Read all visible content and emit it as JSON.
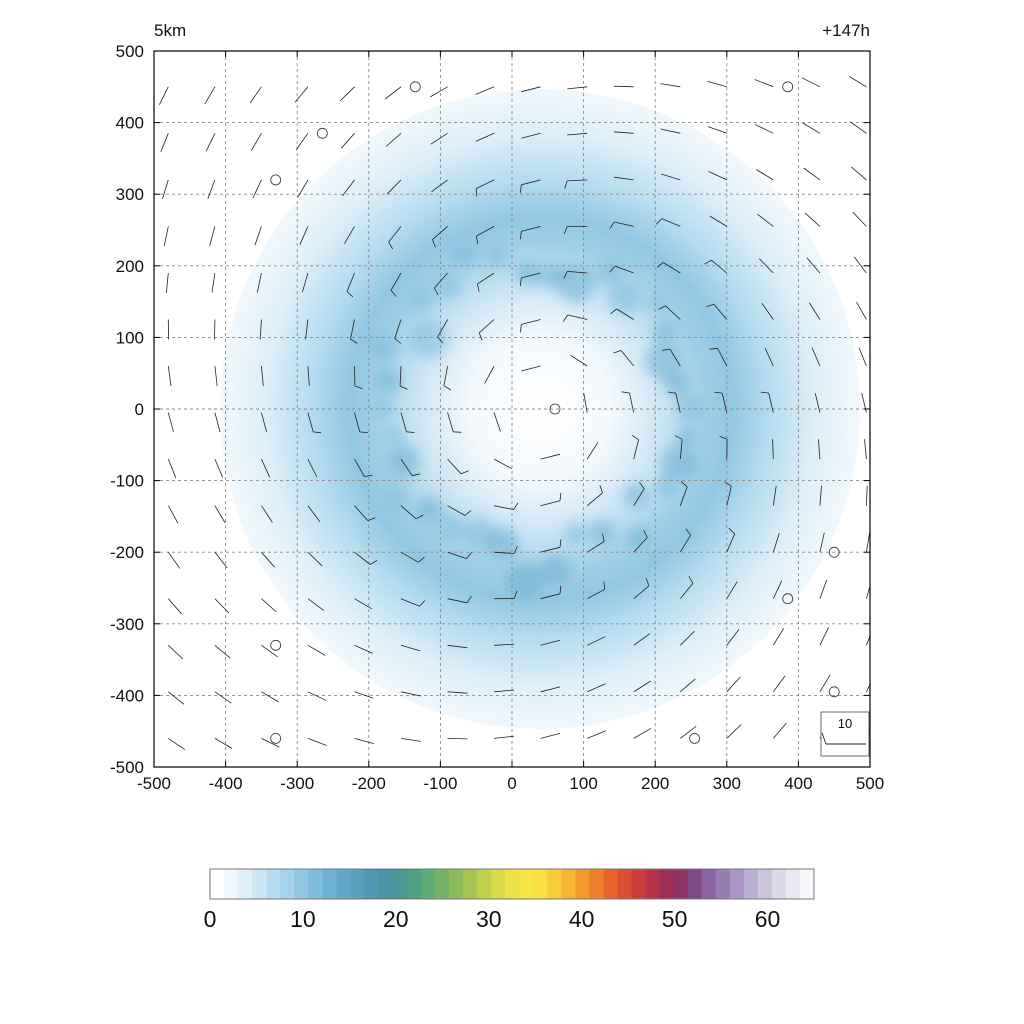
{
  "chart_data": {
    "type": "heatmap",
    "title_left": "5km",
    "title_right": "+147h",
    "xlabel": "",
    "ylabel": "",
    "xlim": [
      -500,
      500
    ],
    "ylim": [
      -500,
      500
    ],
    "xticks": [
      -500,
      -400,
      -300,
      -200,
      -100,
      0,
      100,
      200,
      300,
      400,
      500
    ],
    "yticks": [
      -500,
      -400,
      -300,
      -200,
      -100,
      0,
      100,
      200,
      300,
      400,
      500
    ],
    "grid": true,
    "field": {
      "description_shape": "annulus",
      "center": [
        40,
        0
      ],
      "ring_radius": 210,
      "peak_value": 12,
      "outer_extent": 430,
      "eye_radius": 90
    },
    "wind_barbs": {
      "spacing": 50,
      "rotation": "counter-clockwise",
      "calm_points": [
        [
          -135,
          450
        ],
        [
          385,
          450
        ],
        [
          -265,
          385
        ],
        [
          -330,
          320
        ],
        [
          60,
          0
        ],
        [
          450,
          -200
        ],
        [
          385,
          -265
        ],
        [
          -330,
          -330
        ],
        [
          450,
          -395
        ],
        [
          -330,
          -460
        ],
        [
          255,
          -460
        ]
      ]
    },
    "reference_vector": {
      "label": "10"
    },
    "colorbar": {
      "min": 0,
      "max": 65,
      "tick_values": [
        0,
        10,
        20,
        30,
        40,
        50,
        60
      ],
      "tick_labels": [
        "0",
        "10",
        "20",
        "30",
        "40",
        "50",
        "60"
      ],
      "colors": [
        "#ffffff",
        "#eef7fc",
        "#deeff8",
        "#cbe6f4",
        "#b7dcef",
        "#a4d2ea",
        "#92c7e3",
        "#80bcdb",
        "#6fb1d2",
        "#62a7c8",
        "#579fbd",
        "#4e99b1",
        "#4995a5",
        "#479a95",
        "#4ea185",
        "#5daa74",
        "#73b266",
        "#8dbb5c",
        "#a7c554",
        "#c1d04e",
        "#d8d94b",
        "#ebe148",
        "#f6e545",
        "#f9de3f",
        "#f8cc3a",
        "#f6b534",
        "#f39a2f",
        "#ee7f2c",
        "#e7642d",
        "#dc4e33",
        "#cc3d3d",
        "#b63449",
        "#a02f57",
        "#8a3467",
        "#7d4a86",
        "#8b63a0",
        "#9a7cb5",
        "#aa95c5",
        "#baaed3",
        "#cbc4df",
        "#dcd7e9",
        "#ece8f2",
        "#f8f6fa"
      ]
    }
  }
}
